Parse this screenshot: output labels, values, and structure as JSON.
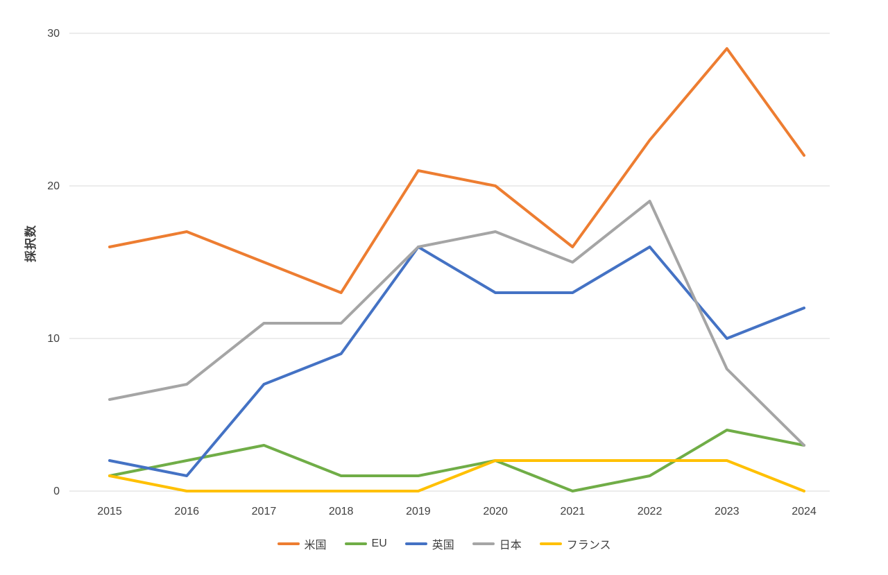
{
  "chart_data": {
    "type": "line",
    "title": "",
    "xlabel": "",
    "ylabel": "採択数",
    "categories": [
      "2015",
      "2016",
      "2017",
      "2018",
      "2019",
      "2020",
      "2021",
      "2022",
      "2023",
      "2024"
    ],
    "ylim": [
      0,
      30
    ],
    "yticks": [
      0,
      10,
      20,
      30
    ],
    "grid": true,
    "legend_position": "bottom",
    "series": [
      {
        "name": "米国",
        "color": "#ED7D31",
        "values": [
          16,
          17,
          15,
          13,
          21,
          20,
          16,
          23,
          29,
          22
        ]
      },
      {
        "name": "EU",
        "color": "#70AD47",
        "values": [
          1,
          2,
          3,
          1,
          1,
          2,
          0,
          1,
          4,
          3
        ]
      },
      {
        "name": "英国",
        "color": "#4472C4",
        "values": [
          2,
          1,
          7,
          9,
          16,
          13,
          13,
          16,
          10,
          12
        ]
      },
      {
        "name": "日本",
        "color": "#A5A5A5",
        "values": [
          6,
          7,
          11,
          11,
          16,
          17,
          15,
          19,
          8,
          3
        ]
      },
      {
        "name": "フランス",
        "color": "#FFC000",
        "values": [
          1,
          0,
          0,
          0,
          0,
          2,
          2,
          2,
          2,
          0
        ]
      }
    ]
  },
  "style": {
    "gridline_color": "#D9D9D9",
    "tick_color": "#404040",
    "line_width": 4
  }
}
